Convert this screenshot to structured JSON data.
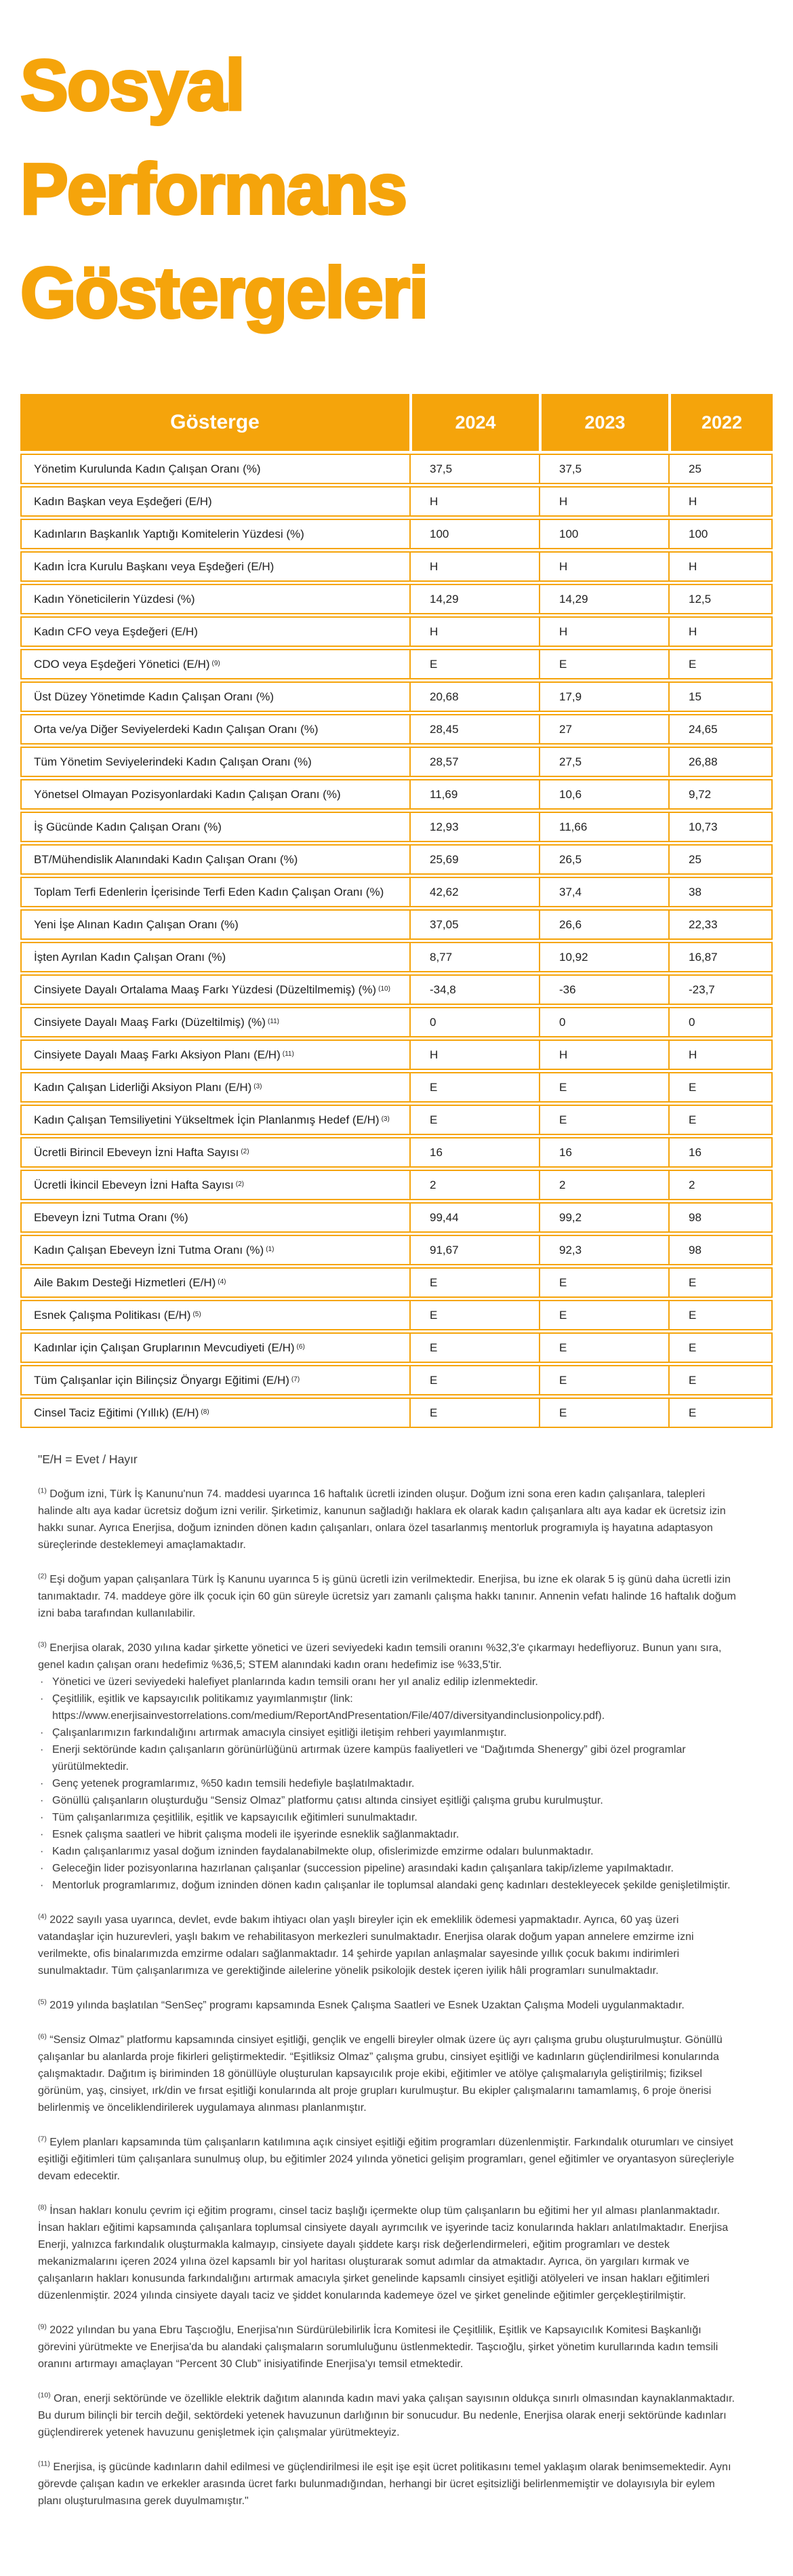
{
  "title": [
    "Sosyal",
    "Performans",
    "Göstergeleri"
  ],
  "colors": {
    "accent_orange": "#F5A40B",
    "header_text": "#FFFFFF",
    "body_text": "#1F1F1F",
    "footnote_text": "#3D3D3D"
  },
  "table": {
    "headers": [
      "Gösterge",
      "2024",
      "2023",
      "2022"
    ],
    "rows": [
      {
        "label": "Yönetim Kurulunda Kadın Çalışan Oranı (%)",
        "sup": "",
        "values": [
          "37,5",
          "37,5",
          "25"
        ]
      },
      {
        "label": "Kadın Başkan veya Eşdeğeri (E/H)",
        "sup": "",
        "values": [
          "H",
          "H",
          "H"
        ]
      },
      {
        "label": "Kadınların Başkanlık Yaptığı Komitelerin Yüzdesi (%)",
        "sup": "",
        "values": [
          "100",
          "100",
          "100"
        ]
      },
      {
        "label": "Kadın İcra Kurulu Başkanı veya Eşdeğeri (E/H)",
        "sup": "",
        "values": [
          "H",
          "H",
          "H"
        ]
      },
      {
        "label": "Kadın Yöneticilerin Yüzdesi (%)",
        "sup": "",
        "values": [
          "14,29",
          "14,29",
          "12,5"
        ]
      },
      {
        "label": "Kadın CFO veya Eşdeğeri (E/H)",
        "sup": "",
        "values": [
          "H",
          "H",
          "H"
        ]
      },
      {
        "label": "CDO veya Eşdeğeri Yönetici (E/H)",
        "sup": "9",
        "values": [
          "E",
          "E",
          "E"
        ]
      },
      {
        "label": "Üst Düzey Yönetimde Kadın Çalışan Oranı (%)",
        "sup": "",
        "values": [
          "20,68",
          "17,9",
          "15"
        ]
      },
      {
        "label": "Orta ve/ya Diğer Seviyelerdeki Kadın Çalışan Oranı (%)",
        "sup": "",
        "values": [
          "28,45",
          "27",
          "24,65"
        ]
      },
      {
        "label": "Tüm Yönetim Seviyelerindeki Kadın Çalışan Oranı (%)",
        "sup": "",
        "values": [
          "28,57",
          "27,5",
          "26,88"
        ]
      },
      {
        "label": "Yönetsel Olmayan Pozisyonlardaki Kadın Çalışan Oranı (%)",
        "sup": "",
        "values": [
          "11,69",
          "10,6",
          "9,72"
        ]
      },
      {
        "label": "İş Gücünde Kadın Çalışan Oranı (%)",
        "sup": "",
        "values": [
          "12,93",
          "11,66",
          "10,73"
        ]
      },
      {
        "label": "BT/Mühendislik Alanındaki Kadın Çalışan Oranı (%)",
        "sup": "",
        "values": [
          "25,69",
          "26,5",
          "25"
        ]
      },
      {
        "label": "Toplam Terfi Edenlerin İçerisinde Terfi Eden Kadın Çalışan Oranı (%)",
        "sup": "",
        "values": [
          "42,62",
          "37,4",
          "38"
        ]
      },
      {
        "label": "Yeni İşe Alınan Kadın Çalışan Oranı (%)",
        "sup": "",
        "values": [
          "37,05",
          "26,6",
          "22,33"
        ]
      },
      {
        "label": "İşten Ayrılan Kadın Çalışan Oranı (%)",
        "sup": "",
        "values": [
          "8,77",
          "10,92",
          "16,87"
        ]
      },
      {
        "label": "Cinsiyete Dayalı Ortalama Maaş Farkı  Yüzdesi (Düzeltilmemiş) (%)",
        "sup": "10",
        "values": [
          "-34,8",
          "-36",
          "-23,7"
        ]
      },
      {
        "label": "Cinsiyete Dayalı Maaş Farkı (Düzeltilmiş) (%)",
        "sup": "11",
        "values": [
          "0",
          "0",
          "0"
        ]
      },
      {
        "label": "Cinsiyete Dayalı Maaş Farkı Aksiyon Planı (E/H)",
        "sup": "11",
        "values": [
          "H",
          "H",
          "H"
        ]
      },
      {
        "label": "Kadın Çalışan Liderliği Aksiyon Planı (E/H)",
        "sup": "3",
        "values": [
          "E",
          "E",
          "E"
        ]
      },
      {
        "label": "Kadın Çalışan Temsiliyetini Yükseltmek İçin Planlanmış Hedef (E/H)",
        "sup": "3",
        "values": [
          "E",
          "E",
          "E"
        ]
      },
      {
        "label": "Ücretli Birincil Ebeveyn İzni Hafta Sayısı",
        "sup": "2",
        "values": [
          "16",
          "16",
          "16"
        ]
      },
      {
        "label": "Ücretli İkincil Ebeveyn İzni Hafta Sayısı",
        "sup": "2",
        "values": [
          "2",
          "2",
          "2"
        ]
      },
      {
        "label": "Ebeveyn İzni Tutma Oranı (%)",
        "sup": "",
        "values": [
          "99,44",
          "99,2",
          "98"
        ]
      },
      {
        "label": "Kadın Çalışan Ebeveyn İzni Tutma Oranı (%)",
        "sup": "1",
        "values": [
          "91,67",
          "92,3",
          "98"
        ]
      },
      {
        "label": "Aile Bakım Desteği Hizmetleri  (E/H)",
        "sup": "4",
        "values": [
          "E",
          "E",
          "E"
        ]
      },
      {
        "label": "Esnek Çalışma Politikası (E/H)",
        "sup": "5",
        "values": [
          "E",
          "E",
          "E"
        ]
      },
      {
        "label": "Kadınlar için Çalışan Gruplarının Mevcudiyeti (E/H)",
        "sup": "6",
        "values": [
          "E",
          "E",
          "E"
        ]
      },
      {
        "label": "Tüm Çalışanlar için Bilinçsiz Önyargı Eğitimi (E/H)",
        "sup": "7",
        "values": [
          "E",
          "E",
          "E"
        ]
      },
      {
        "label": "Cinsel Taciz Eğitimi (Yıllık) (E/H)",
        "sup": "8",
        "values": [
          "E",
          "E",
          "E"
        ]
      }
    ]
  },
  "legend": "\"E/H = Evet / Hayır",
  "footnotes": [
    {
      "marker": "1",
      "text": "Doğum izni, Türk İş Kanunu'nun 74. maddesi uyarınca 16 haftalık ücretli izinden oluşur. Doğum izni sona eren kadın çalışanlara, talepleri halinde altı aya kadar ücretsiz doğum izni verilir. Şirketimiz, kanunun sağladığı haklara ek olarak kadın çalışanlara altı aya kadar ek ücretsiz izin hakkı sunar. Ayrıca Enerjisa, doğum izninden dönen kadın çalışanları, onlara özel tasarlanmış mentorluk programıyla iş hayatına adaptasyon süreçlerinde desteklemeyi amaçlamaktadır."
    },
    {
      "marker": "2",
      "text": "Eşi doğum yapan çalışanlara Türk İş Kanunu uyarınca 5 iş günü ücretli izin verilmektedir. Enerjisa, bu izne ek olarak 5 iş günü daha ücretli izin tanımaktadır. 74. maddeye göre ilk çocuk için 60 gün süreyle ücretsiz yarı zamanlı çalışma hakkı tanınır. Annenin vefatı halinde 16 haftalık doğum izni baba tarafından kullanılabilir."
    },
    {
      "marker": "3",
      "text": "Enerjisa olarak, 2030 yılına kadar şirkette yönetici ve üzeri seviyedeki kadın temsili oranını %32,3'e çıkarmayı hedefliyoruz. Bunun yanı sıra, genel kadın çalışan oranı hedefimiz %36,5; STEM alanındaki kadın oranı hedefimiz ise %33,5'tir.",
      "bullets": [
        "Yönetici ve üzeri seviyedeki halefiyet planlarında kadın temsili oranı her yıl analiz edilip izlenmektedir.",
        "Çeşitlilik, eşitlik ve kapsayıcılık politikamız yayımlanmıştır (link: https://www.enerjisainvestorrelations.com/medium/ReportAndPresentation/File/407/diversityandinclusionpolicy.pdf).",
        "Çalışanlarımızın farkındalığını artırmak amacıyla cinsiyet eşitliği iletişim rehberi yayımlanmıştır.",
        "Enerji sektöründe kadın çalışanların görünürlüğünü artırmak üzere kampüs faaliyetleri ve “Dağıtımda Shenergy” gibi özel programlar yürütülmektedir.",
        "Genç yetenek programlarımız, %50 kadın temsili hedefiyle başlatılmaktadır.",
        "Gönüllü çalışanların oluşturduğu “Sensiz Olmaz” platformu çatısı altında cinsiyet eşitliği çalışma grubu kurulmuştur.",
        "Tüm çalışanlarımıza çeşitlilik, eşitlik ve kapsayıcılık eğitimleri sunulmaktadır.",
        "Esnek çalışma saatleri ve hibrit çalışma modeli ile işyerinde esneklik sağlanmaktadır.",
        "Kadın çalışanlarımız yasal doğum izninden faydalanabilmekte olup, ofislerimizde emzirme odaları bulunmaktadır.",
        "Geleceğin lider pozisyonlarına hazırlanan çalışanlar (succession pipeline) arasındaki kadın çalışanlara takip/izleme yapılmaktadır.",
        "Mentorluk programlarımız, doğum izninden dönen kadın çalışanlar ile toplumsal alandaki genç kadınları destekleyecek şekilde genişletilmiştir."
      ]
    },
    {
      "marker": "4",
      "text": "2022 sayılı yasa uyarınca, devlet, evde bakım ihtiyacı olan yaşlı bireyler için ek emeklilik ödemesi yapmaktadır. Ayrıca, 60 yaş üzeri vatandaşlar için huzurevleri, yaşlı bakım ve rehabilitasyon merkezleri sunulmaktadır. Enerjisa olarak doğum yapan annelere emzirme izni verilmekte, ofis binalarımızda emzirme odaları sağlanmaktadır. 14 şehirde yapılan anlaşmalar sayesinde yıllık çocuk bakımı indirimleri sunulmaktadır. Tüm çalışanlarımıza ve gerektiğinde ailelerine yönelik psikolojik destek içeren iyilik hâli programları sunulmaktadır."
    },
    {
      "marker": "5",
      "text": "2019 yılında başlatılan “SenSeç” programı kapsamında Esnek Çalışma Saatleri ve Esnek Uzaktan Çalışma Modeli uygulanmaktadır."
    },
    {
      "marker": "6",
      "text": "“Sensiz Olmaz” platformu kapsamında cinsiyet eşitliği, gençlik ve engelli bireyler olmak üzere üç ayrı çalışma grubu oluşturulmuştur. Gönüllü çalışanlar bu alanlarda proje fikirleri geliştirmektedir. “Eşitliksiz Olmaz” çalışma grubu, cinsiyet eşitliği ve kadınların güçlendirilmesi konularında çalışmaktadır. Dağıtım iş biriminden 18 gönüllüyle oluşturulan kapsayıcılık proje ekibi, eğitimler ve atölye çalışmalarıyla geliştirilmiş; fiziksel görünüm, yaş, cinsiyet, ırk/din ve fırsat eşitliği konularında alt proje grupları kurulmuştur. Bu ekipler çalışmalarını tamamlamış, 6 proje önerisi belirlenmiş ve önceliklendirilerek uygulamaya alınması planlanmıştır."
    },
    {
      "marker": "7",
      "text": "Eylem planları kapsamında tüm çalışanların katılımına açık cinsiyet eşitliği eğitim programları düzenlenmiştir. Farkındalık oturumları ve cinsiyet eşitliği eğitimleri tüm çalışanlara sunulmuş olup, bu eğitimler 2024 yılında yönetici gelişim programları, genel eğitimler ve oryantasyon süreçleriyle devam edecektir."
    },
    {
      "marker": "8",
      "text": "İnsan hakları konulu çevrim içi eğitim programı, cinsel taciz başlığı içermekte olup tüm çalışanların bu eğitimi her yıl alması planlanmaktadır. İnsan hakları eğitimi kapsamında çalışanlara toplumsal cinsiyete dayalı ayrımcılık ve işyerinde taciz konularında hakları anlatılmaktadır. Enerjisa Enerji, yalnızca farkındalık oluşturmakla kalmayıp, cinsiyete dayalı şiddete karşı risk değerlendirmeleri, eğitim programları ve destek mekanizmalarını içeren 2024 yılına özel kapsamlı bir yol haritası oluşturarak somut adımlar da atmaktadır. Ayrıca, ön yargıları kırmak ve çalışanların hakları konusunda farkındalığını artırmak amacıyla şirket genelinde kapsamlı cinsiyet eşitliği atölyeleri ve insan hakları eğitimleri düzenlenmiştir. 2024 yılında cinsiyete dayalı taciz ve şiddet konularında kademeye özel ve şirket genelinde eğitimler gerçekleştirilmiştir."
    },
    {
      "marker": "9",
      "text": "2022 yılından bu yana Ebru Taşcıoğlu, Enerjisa'nın Sürdürülebilirlik İcra Komitesi ile Çeşitlilik, Eşitlik ve Kapsayıcılık Komitesi Başkanlığı görevini yürütmekte ve Enerjisa'da bu alandaki çalışmaların sorumluluğunu üstlenmektedir. Taşcıoğlu, şirket yönetim kurullarında kadın temsili oranını artırmayı amaçlayan “Percent 30 Club” inisiyatifinde Enerjisa'yı temsil etmektedir."
    },
    {
      "marker": "10",
      "text": "Oran, enerji sektöründe ve özellikle elektrik dağıtım alanında kadın mavi yaka çalışan sayısının oldukça sınırlı olmasından kaynaklanmaktadır. Bu durum bilinçli bir tercih değil, sektördeki yetenek havuzunun darlığının bir sonucudur. Bu nedenle, Enerjisa olarak enerji sektöründe kadınları güçlendirerek yetenek havuzunu genişletmek için çalışmalar yürütmekteyiz."
    },
    {
      "marker": "11",
      "text": "Enerjisa, iş gücünde kadınların dahil edilmesi ve güçlendirilmesi ile eşit işe eşit ücret politikasını temel yaklaşım olarak benimsemektedir. Aynı görevde çalışan kadın ve erkekler arasında ücret farkı bulunmadığından, herhangi bir ücret eşitsizliği belirlenmemiştir ve dolayısıyla bir eylem planı oluşturulmasına gerek duyulmamıştır.\""
    }
  ]
}
